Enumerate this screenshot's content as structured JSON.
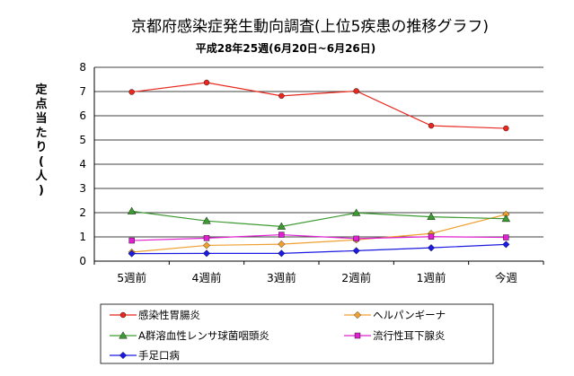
{
  "chart_data": {
    "type": "line",
    "title": "京都府感染症発生動向調査(上位5疾患の推移グラフ)",
    "subtitle": "平成28年25週(6月20日~6月26日)",
    "ylabel": "定点当たり(人)",
    "xlabel": "",
    "ylim": [
      0,
      8
    ],
    "yticks": [
      0,
      1,
      2,
      3,
      4,
      5,
      6,
      7,
      8
    ],
    "grid": true,
    "legend_position": "bottom",
    "categories": [
      "5週前",
      "4週前",
      "3週前",
      "2週前",
      "1週前",
      "今週"
    ],
    "series": [
      {
        "name": "感染性胃腸炎",
        "color": "#e8281e",
        "marker": "circle",
        "values": [
          6.98,
          7.37,
          6.82,
          7.02,
          5.59,
          5.48
        ]
      },
      {
        "name": "ヘルパンギーナ",
        "color": "#f0a030",
        "marker": "diamond",
        "values": [
          0.37,
          0.65,
          0.7,
          0.88,
          1.14,
          1.93
        ]
      },
      {
        "name": "A群溶血性レンサ球菌咽頭炎",
        "color": "#3c9a32",
        "marker": "triangle",
        "values": [
          2.06,
          1.66,
          1.43,
          1.99,
          1.83,
          1.75
        ]
      },
      {
        "name": "流行性耳下腺炎",
        "color": "#e020d0",
        "marker": "square",
        "values": [
          0.85,
          0.95,
          1.09,
          0.93,
          1.01,
          0.98
        ]
      },
      {
        "name": "手足口病",
        "color": "#1a1ae0",
        "marker": "diamond",
        "values": [
          0.31,
          0.32,
          0.32,
          0.43,
          0.55,
          0.69
        ]
      }
    ]
  }
}
